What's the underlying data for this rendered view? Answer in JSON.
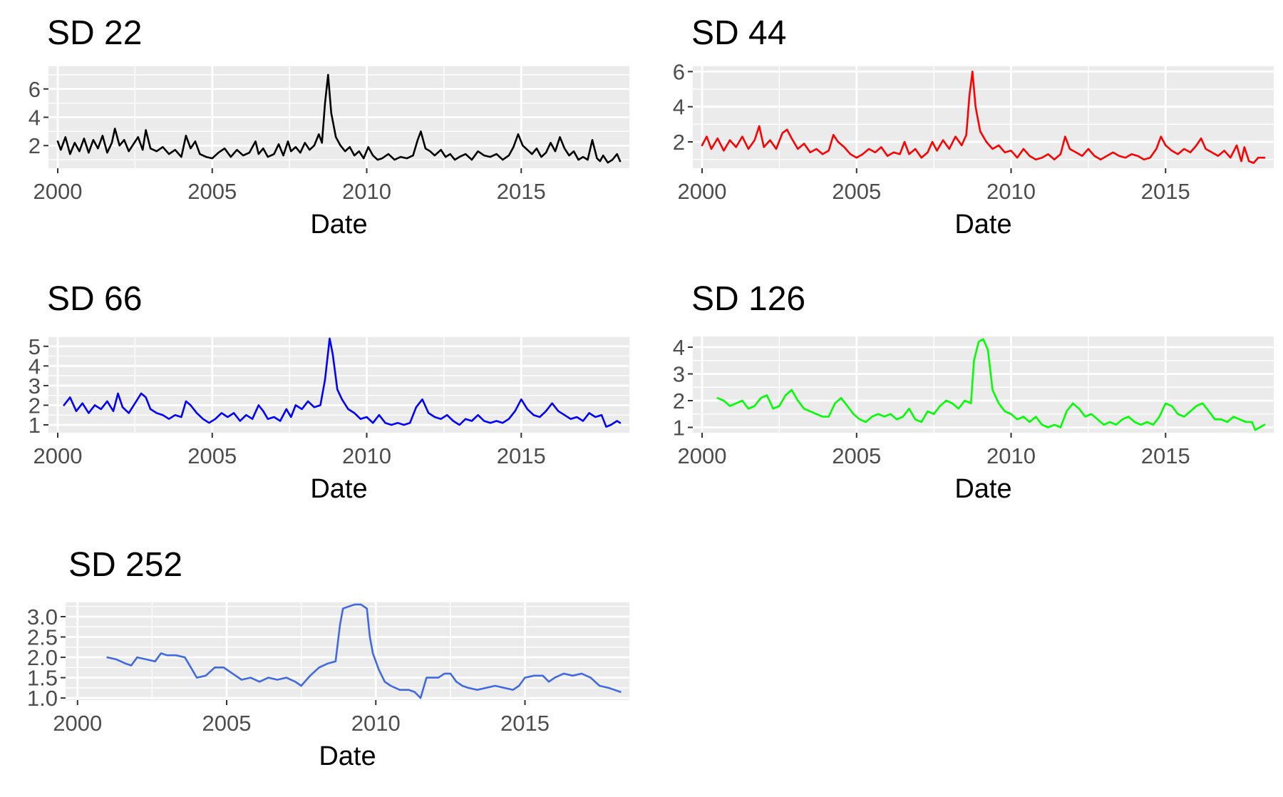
{
  "figure": {
    "background": "#FFFFFF",
    "panel_background": "#EBEBEB",
    "grid_color": "#FFFFFF"
  },
  "chart_data": [
    {
      "type": "line",
      "title": "SD 22",
      "xlabel": "Date",
      "ylabel": "",
      "color": "#000000",
      "xlim": [
        1999.7,
        2018.5
      ],
      "ylim": [
        0.4,
        7.6
      ],
      "xticks": [
        2000,
        2005,
        2010,
        2015
      ],
      "xtick_labels": [
        "2000",
        "2005",
        "2010",
        "2015"
      ],
      "yticks": [
        2,
        4,
        6
      ],
      "ytick_labels": [
        "2",
        "4",
        "6"
      ],
      "grid": true,
      "x": [
        2000.0,
        2000.1,
        2000.25,
        2000.4,
        2000.55,
        2000.7,
        2000.85,
        2001.0,
        2001.15,
        2001.3,
        2001.45,
        2001.6,
        2001.75,
        2001.85,
        2002.0,
        2002.15,
        2002.3,
        2002.45,
        2002.6,
        2002.75,
        2002.85,
        2003.0,
        2003.2,
        2003.4,
        2003.6,
        2003.8,
        2004.0,
        2004.15,
        2004.3,
        2004.45,
        2004.6,
        2004.8,
        2005.0,
        2005.2,
        2005.4,
        2005.6,
        2005.8,
        2006.0,
        2006.2,
        2006.4,
        2006.5,
        2006.65,
        2006.8,
        2007.0,
        2007.15,
        2007.3,
        2007.45,
        2007.55,
        2007.7,
        2007.85,
        2008.0,
        2008.15,
        2008.3,
        2008.45,
        2008.55,
        2008.65,
        2008.75,
        2008.85,
        2009.0,
        2009.15,
        2009.3,
        2009.45,
        2009.6,
        2009.75,
        2009.9,
        2010.05,
        2010.2,
        2010.35,
        2010.5,
        2010.7,
        2010.9,
        2011.1,
        2011.3,
        2011.5,
        2011.65,
        2011.75,
        2011.9,
        2012.05,
        2012.2,
        2012.4,
        2012.55,
        2012.7,
        2012.85,
        2013.0,
        2013.2,
        2013.4,
        2013.6,
        2013.8,
        2014.0,
        2014.2,
        2014.4,
        2014.6,
        2014.75,
        2014.9,
        2015.05,
        2015.2,
        2015.35,
        2015.5,
        2015.65,
        2015.8,
        2015.95,
        2016.1,
        2016.25,
        2016.4,
        2016.55,
        2016.7,
        2016.85,
        2017.0,
        2017.15,
        2017.3,
        2017.45,
        2017.55,
        2017.65,
        2017.8,
        2017.95,
        2018.1,
        2018.2
      ],
      "y": [
        2.3,
        1.7,
        2.6,
        1.4,
        2.2,
        1.6,
        2.5,
        1.5,
        2.4,
        1.8,
        2.7,
        1.5,
        2.2,
        3.2,
        2.0,
        2.4,
        1.6,
        2.1,
        2.6,
        1.7,
        3.1,
        1.8,
        1.6,
        1.9,
        1.4,
        1.7,
        1.2,
        2.7,
        1.8,
        2.3,
        1.4,
        1.2,
        1.1,
        1.5,
        1.8,
        1.2,
        1.7,
        1.3,
        1.5,
        2.3,
        1.4,
        1.8,
        1.2,
        1.4,
        2.1,
        1.3,
        2.3,
        1.6,
        1.9,
        1.5,
        2.2,
        1.7,
        2.0,
        2.8,
        2.2,
        5.0,
        7.0,
        4.3,
        2.6,
        2.0,
        1.6,
        1.9,
        1.3,
        1.6,
        1.1,
        1.9,
        1.3,
        1.0,
        1.1,
        1.4,
        1.0,
        1.2,
        1.1,
        1.3,
        2.4,
        3.0,
        1.8,
        1.6,
        1.3,
        1.7,
        1.2,
        1.4,
        1.0,
        1.2,
        1.4,
        1.0,
        1.6,
        1.3,
        1.2,
        1.4,
        1.0,
        1.3,
        1.9,
        2.8,
        2.0,
        1.7,
        1.4,
        1.8,
        1.2,
        1.5,
        2.2,
        1.6,
        2.6,
        1.8,
        1.3,
        1.6,
        1.0,
        1.2,
        1.0,
        2.4,
        1.1,
        0.9,
        1.3,
        0.8,
        1.0,
        1.4,
        0.9
      ]
    },
    {
      "type": "line",
      "title": "SD 44",
      "xlabel": "Date",
      "ylabel": "",
      "color": "#FF0000",
      "xlim": [
        1999.7,
        2018.5
      ],
      "ylim": [
        0.5,
        6.3
      ],
      "xticks": [
        2000,
        2005,
        2010,
        2015
      ],
      "xtick_labels": [
        "2000",
        "2005",
        "2010",
        "2015"
      ],
      "yticks": [
        2,
        4,
        6
      ],
      "ytick_labels": [
        "2",
        "4",
        "6"
      ],
      "grid": true,
      "x": [
        2000.0,
        2000.15,
        2000.3,
        2000.5,
        2000.7,
        2000.9,
        2001.1,
        2001.3,
        2001.5,
        2001.7,
        2001.85,
        2002.0,
        2002.2,
        2002.4,
        2002.6,
        2002.75,
        2002.9,
        2003.1,
        2003.3,
        2003.5,
        2003.7,
        2003.9,
        2004.1,
        2004.25,
        2004.4,
        2004.6,
        2004.8,
        2005.0,
        2005.2,
        2005.4,
        2005.6,
        2005.8,
        2006.0,
        2006.2,
        2006.4,
        2006.55,
        2006.7,
        2006.9,
        2007.1,
        2007.3,
        2007.45,
        2007.6,
        2007.8,
        2008.0,
        2008.2,
        2008.4,
        2008.55,
        2008.65,
        2008.75,
        2008.85,
        2009.0,
        2009.2,
        2009.4,
        2009.6,
        2009.8,
        2010.0,
        2010.2,
        2010.4,
        2010.6,
        2010.8,
        2011.0,
        2011.2,
        2011.4,
        2011.6,
        2011.75,
        2011.9,
        2012.1,
        2012.3,
        2012.5,
        2012.7,
        2012.9,
        2013.1,
        2013.3,
        2013.5,
        2013.7,
        2013.9,
        2014.1,
        2014.3,
        2014.5,
        2014.7,
        2014.85,
        2015.0,
        2015.2,
        2015.4,
        2015.6,
        2015.8,
        2016.0,
        2016.15,
        2016.3,
        2016.5,
        2016.7,
        2016.9,
        2017.1,
        2017.3,
        2017.45,
        2017.55,
        2017.7,
        2017.85,
        2018.0,
        2018.2
      ],
      "y": [
        1.8,
        2.3,
        1.6,
        2.2,
        1.5,
        2.1,
        1.7,
        2.3,
        1.6,
        2.1,
        2.9,
        1.7,
        2.1,
        1.6,
        2.5,
        2.7,
        2.2,
        1.6,
        1.9,
        1.4,
        1.6,
        1.3,
        1.5,
        2.4,
        2.0,
        1.7,
        1.3,
        1.1,
        1.3,
        1.6,
        1.4,
        1.7,
        1.2,
        1.4,
        1.3,
        2.0,
        1.3,
        1.6,
        1.1,
        1.4,
        2.0,
        1.5,
        2.1,
        1.6,
        2.3,
        1.8,
        2.4,
        4.6,
        6.0,
        4.0,
        2.6,
        2.0,
        1.6,
        1.8,
        1.4,
        1.5,
        1.1,
        1.6,
        1.2,
        1.0,
        1.1,
        1.3,
        1.0,
        1.3,
        2.3,
        1.6,
        1.4,
        1.2,
        1.6,
        1.2,
        1.0,
        1.2,
        1.4,
        1.2,
        1.1,
        1.3,
        1.2,
        1.0,
        1.1,
        1.6,
        2.3,
        1.8,
        1.5,
        1.3,
        1.6,
        1.4,
        1.8,
        2.2,
        1.6,
        1.4,
        1.2,
        1.5,
        1.1,
        1.8,
        0.9,
        1.7,
        0.9,
        0.8,
        1.1,
        1.1
      ]
    },
    {
      "type": "line",
      "title": "SD 66",
      "xlabel": "Date",
      "ylabel": "",
      "color": "#0000FF",
      "xlim": [
        1999.7,
        2018.5
      ],
      "ylim": [
        0.6,
        5.5
      ],
      "xticks": [
        2000,
        2005,
        2010,
        2015
      ],
      "xtick_labels": [
        "2000",
        "2005",
        "2010",
        "2015"
      ],
      "yticks": [
        1,
        2,
        3,
        4,
        5
      ],
      "ytick_labels": [
        "1",
        "2",
        "3",
        "4",
        "5"
      ],
      "grid": true,
      "x": [
        2000.2,
        2000.4,
        2000.6,
        2000.8,
        2001.0,
        2001.2,
        2001.4,
        2001.6,
        2001.8,
        2001.95,
        2002.1,
        2002.3,
        2002.5,
        2002.7,
        2002.85,
        2003.0,
        2003.2,
        2003.4,
        2003.6,
        2003.8,
        2004.0,
        2004.15,
        2004.3,
        2004.5,
        2004.7,
        2004.9,
        2005.1,
        2005.3,
        2005.5,
        2005.7,
        2005.9,
        2006.1,
        2006.3,
        2006.5,
        2006.65,
        2006.8,
        2007.0,
        2007.2,
        2007.4,
        2007.55,
        2007.7,
        2007.9,
        2008.1,
        2008.3,
        2008.5,
        2008.65,
        2008.8,
        2008.9,
        2009.05,
        2009.2,
        2009.4,
        2009.6,
        2009.8,
        2010.0,
        2010.2,
        2010.4,
        2010.6,
        2010.8,
        2011.0,
        2011.2,
        2011.4,
        2011.6,
        2011.8,
        2012.0,
        2012.2,
        2012.4,
        2012.6,
        2012.8,
        2013.0,
        2013.2,
        2013.4,
        2013.6,
        2013.8,
        2014.0,
        2014.2,
        2014.4,
        2014.6,
        2014.8,
        2015.0,
        2015.2,
        2015.4,
        2015.6,
        2015.8,
        2016.0,
        2016.2,
        2016.4,
        2016.6,
        2016.8,
        2017.0,
        2017.2,
        2017.4,
        2017.6,
        2017.75,
        2017.9,
        2018.1,
        2018.2
      ],
      "y": [
        2.0,
        2.4,
        1.7,
        2.1,
        1.6,
        2.0,
        1.8,
        2.2,
        1.7,
        2.6,
        1.9,
        1.6,
        2.1,
        2.6,
        2.4,
        1.8,
        1.6,
        1.5,
        1.3,
        1.5,
        1.4,
        2.2,
        2.0,
        1.6,
        1.3,
        1.1,
        1.3,
        1.6,
        1.4,
        1.6,
        1.2,
        1.5,
        1.3,
        2.0,
        1.7,
        1.3,
        1.4,
        1.2,
        1.8,
        1.4,
        2.0,
        1.8,
        2.2,
        1.9,
        2.0,
        3.3,
        5.4,
        4.6,
        2.8,
        2.3,
        1.8,
        1.6,
        1.3,
        1.4,
        1.1,
        1.5,
        1.1,
        1.0,
        1.1,
        1.0,
        1.1,
        1.9,
        2.3,
        1.6,
        1.4,
        1.3,
        1.5,
        1.2,
        1.0,
        1.3,
        1.2,
        1.5,
        1.2,
        1.1,
        1.2,
        1.1,
        1.3,
        1.7,
        2.3,
        1.8,
        1.5,
        1.4,
        1.7,
        2.1,
        1.7,
        1.5,
        1.3,
        1.4,
        1.2,
        1.6,
        1.4,
        1.5,
        0.9,
        1.0,
        1.2,
        1.1
      ]
    },
    {
      "type": "line",
      "title": "SD 126",
      "xlabel": "Date",
      "ylabel": "",
      "color": "#00FF00",
      "xlim": [
        1999.7,
        2018.5
      ],
      "ylim": [
        0.8,
        4.4
      ],
      "xticks": [
        2000,
        2005,
        2010,
        2015
      ],
      "xtick_labels": [
        "2000",
        "2005",
        "2010",
        "2015"
      ],
      "yticks": [
        1,
        2,
        3,
        4
      ],
      "ytick_labels": [
        "1",
        "2",
        "3",
        "4"
      ],
      "grid": true,
      "x": [
        2000.5,
        2000.7,
        2000.9,
        2001.1,
        2001.3,
        2001.5,
        2001.7,
        2001.9,
        2002.1,
        2002.3,
        2002.5,
        2002.7,
        2002.9,
        2003.1,
        2003.3,
        2003.5,
        2003.7,
        2003.9,
        2004.1,
        2004.3,
        2004.5,
        2004.7,
        2004.9,
        2005.1,
        2005.3,
        2005.5,
        2005.7,
        2005.9,
        2006.1,
        2006.3,
        2006.5,
        2006.7,
        2006.9,
        2007.1,
        2007.3,
        2007.5,
        2007.7,
        2007.9,
        2008.1,
        2008.3,
        2008.5,
        2008.7,
        2008.8,
        2008.95,
        2009.1,
        2009.25,
        2009.4,
        2009.6,
        2009.8,
        2010.0,
        2010.2,
        2010.4,
        2010.6,
        2010.8,
        2011.0,
        2011.2,
        2011.4,
        2011.6,
        2011.8,
        2012.0,
        2012.2,
        2012.4,
        2012.6,
        2012.8,
        2013.0,
        2013.2,
        2013.4,
        2013.6,
        2013.8,
        2014.0,
        2014.2,
        2014.4,
        2014.6,
        2014.8,
        2015.0,
        2015.2,
        2015.4,
        2015.6,
        2015.8,
        2016.0,
        2016.2,
        2016.4,
        2016.6,
        2016.8,
        2017.0,
        2017.2,
        2017.4,
        2017.6,
        2017.8,
        2017.9,
        2018.05,
        2018.2
      ],
      "y": [
        2.1,
        2.0,
        1.8,
        1.9,
        2.0,
        1.7,
        1.8,
        2.1,
        2.2,
        1.7,
        1.8,
        2.2,
        2.4,
        2.0,
        1.7,
        1.6,
        1.5,
        1.4,
        1.4,
        1.9,
        2.1,
        1.8,
        1.5,
        1.3,
        1.2,
        1.4,
        1.5,
        1.4,
        1.5,
        1.3,
        1.4,
        1.7,
        1.3,
        1.2,
        1.6,
        1.5,
        1.8,
        2.0,
        1.9,
        1.7,
        2.0,
        1.9,
        3.5,
        4.2,
        4.3,
        3.9,
        2.4,
        1.9,
        1.6,
        1.5,
        1.3,
        1.4,
        1.2,
        1.4,
        1.1,
        1.0,
        1.1,
        1.0,
        1.6,
        1.9,
        1.7,
        1.4,
        1.5,
        1.3,
        1.1,
        1.2,
        1.1,
        1.3,
        1.4,
        1.2,
        1.1,
        1.2,
        1.1,
        1.4,
        1.9,
        1.8,
        1.5,
        1.4,
        1.6,
        1.8,
        1.9,
        1.6,
        1.3,
        1.3,
        1.2,
        1.4,
        1.3,
        1.2,
        1.2,
        0.9,
        1.0,
        1.1
      ]
    },
    {
      "type": "line",
      "title": "SD 252",
      "xlabel": "Date",
      "ylabel": "",
      "color": "#4169E1",
      "xlim": [
        1999.6,
        2018.5
      ],
      "ylim": [
        0.95,
        3.35
      ],
      "xticks": [
        2000,
        2005,
        2010,
        2015
      ],
      "xtick_labels": [
        "2000",
        "2005",
        "2010",
        "2015"
      ],
      "yticks": [
        1.0,
        1.5,
        2.0,
        2.5,
        3.0
      ],
      "ytick_labels": [
        "1.0",
        "1.5",
        "2.0",
        "2.5",
        "3.0"
      ],
      "grid": true,
      "x": [
        2001.0,
        2001.3,
        2001.6,
        2001.8,
        2002.0,
        2002.3,
        2002.6,
        2002.8,
        2003.0,
        2003.3,
        2003.6,
        2003.8,
        2004.0,
        2004.3,
        2004.6,
        2004.9,
        2005.2,
        2005.5,
        2005.8,
        2006.1,
        2006.4,
        2006.7,
        2007.0,
        2007.3,
        2007.5,
        2007.8,
        2008.1,
        2008.4,
        2008.65,
        2008.8,
        2008.9,
        2009.1,
        2009.3,
        2009.5,
        2009.7,
        2009.8,
        2009.9,
        2010.1,
        2010.3,
        2010.5,
        2010.8,
        2011.1,
        2011.3,
        2011.5,
        2011.7,
        2011.9,
        2012.1,
        2012.3,
        2012.5,
        2012.7,
        2012.9,
        2013.1,
        2013.4,
        2013.7,
        2014.0,
        2014.3,
        2014.6,
        2014.8,
        2015.0,
        2015.3,
        2015.6,
        2015.8,
        2016.0,
        2016.3,
        2016.6,
        2016.9,
        2017.2,
        2017.5,
        2017.8,
        2018.0,
        2018.2
      ],
      "y": [
        2.0,
        1.95,
        1.85,
        1.8,
        2.0,
        1.95,
        1.9,
        2.1,
        2.05,
        2.05,
        2.0,
        1.75,
        1.5,
        1.55,
        1.75,
        1.75,
        1.6,
        1.45,
        1.5,
        1.4,
        1.5,
        1.45,
        1.5,
        1.4,
        1.3,
        1.55,
        1.75,
        1.85,
        1.9,
        2.8,
        3.2,
        3.25,
        3.3,
        3.3,
        3.2,
        2.5,
        2.1,
        1.7,
        1.4,
        1.3,
        1.2,
        1.2,
        1.15,
        1.0,
        1.5,
        1.5,
        1.5,
        1.6,
        1.6,
        1.4,
        1.3,
        1.25,
        1.2,
        1.25,
        1.3,
        1.25,
        1.2,
        1.3,
        1.5,
        1.55,
        1.55,
        1.4,
        1.5,
        1.6,
        1.55,
        1.6,
        1.5,
        1.3,
        1.25,
        1.2,
        1.15
      ]
    }
  ]
}
